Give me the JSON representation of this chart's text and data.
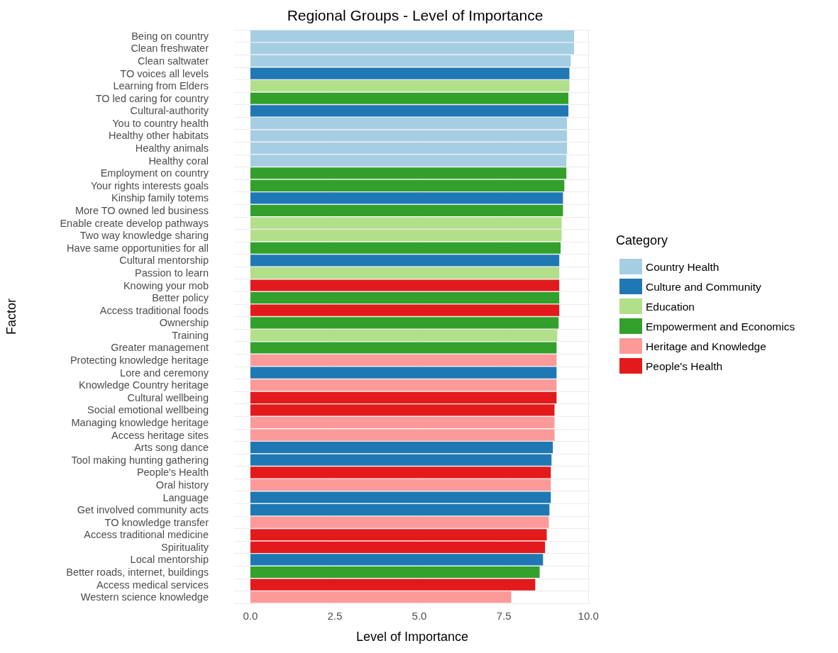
{
  "chart_data": {
    "type": "bar",
    "orientation": "horizontal",
    "title": "Regional Groups - Level of Importance",
    "xlabel": "Level of Importance",
    "ylabel": "Factor",
    "legend_title": "Category",
    "legend": "right",
    "grid": true,
    "categories": [
      "Being on country",
      "Clean freshwater",
      "Clean saltwater",
      "TO voices all levels",
      "Learning from Elders",
      "TO led caring for country",
      "Cultural-authority",
      "You to country health",
      "Healthy other habitats",
      "Healthy animals",
      "Healthy coral",
      "Employment on country",
      "Your rights interests goals",
      "Kinship family totems",
      "More TO owned led business",
      "Enable create develop pathways",
      "Two way knowledge sharing",
      "Have same opportunities for all",
      "Cultural mentorship",
      "Passion to learn",
      "Knowing your mob",
      "Better policy",
      "Access traditional foods",
      "Ownership",
      "Training",
      "Greater management",
      "Protecting knowledge heritage",
      "Lore and ceremony",
      "Knowledge Country heritage",
      "Cultural wellbeing",
      "Social emotional wellbeing",
      "Managing knowledge heritage",
      "Access heritage sites",
      "Arts song dance",
      "Tool making hunting gathering",
      "People's Health",
      "Oral history",
      "Language",
      "Get involved community acts",
      "TO knowledge transfer",
      "Access traditional medicine",
      "Spirituality",
      "Local mentorship",
      "Better roads, internet, buildings",
      "Access medical services",
      "Western science knowledge"
    ],
    "series": [
      {
        "name": "Country Health",
        "color": "#a6cee3",
        "values": [
          9.58,
          9.58,
          9.48,
          null,
          null,
          null,
          null,
          9.37,
          9.37,
          9.37,
          9.35,
          null,
          null,
          null,
          null,
          null,
          null,
          null,
          null,
          null,
          null,
          null,
          null,
          null,
          null,
          null,
          null,
          null,
          null,
          null,
          null,
          null,
          null,
          null,
          null,
          null,
          null,
          null,
          null,
          null,
          null,
          null,
          null,
          null,
          null,
          null
        ]
      },
      {
        "name": "Culture and Community",
        "color": "#1f78b4",
        "values": [
          null,
          null,
          null,
          9.44,
          null,
          null,
          9.41,
          null,
          null,
          null,
          null,
          null,
          null,
          9.25,
          null,
          null,
          null,
          null,
          9.14,
          null,
          null,
          null,
          null,
          null,
          null,
          null,
          null,
          9.06,
          null,
          null,
          null,
          null,
          null,
          8.95,
          8.91,
          null,
          null,
          8.89,
          8.85,
          null,
          null,
          null,
          8.66,
          null,
          null,
          null
        ]
      },
      {
        "name": "Education",
        "color": "#b2df8a",
        "values": [
          null,
          null,
          null,
          null,
          9.44,
          null,
          null,
          null,
          null,
          null,
          null,
          null,
          null,
          null,
          null,
          9.21,
          9.21,
          null,
          null,
          9.14,
          null,
          null,
          null,
          null,
          9.08,
          null,
          null,
          null,
          null,
          null,
          null,
          null,
          null,
          null,
          null,
          null,
          null,
          null,
          null,
          null,
          null,
          null,
          null,
          null,
          null,
          null
        ]
      },
      {
        "name": "Empowerment and Economics",
        "color": "#33a02c",
        "values": [
          null,
          null,
          null,
          null,
          null,
          9.41,
          null,
          null,
          null,
          null,
          null,
          9.35,
          9.29,
          null,
          9.25,
          null,
          null,
          9.18,
          null,
          null,
          null,
          9.14,
          null,
          9.12,
          null,
          9.06,
          null,
          null,
          null,
          null,
          null,
          null,
          null,
          null,
          null,
          null,
          null,
          null,
          null,
          null,
          null,
          null,
          null,
          8.56,
          null,
          null
        ]
      },
      {
        "name": "Heritage and Knowledge",
        "color": "#fb9a99",
        "values": [
          null,
          null,
          null,
          null,
          null,
          null,
          null,
          null,
          null,
          null,
          null,
          null,
          null,
          null,
          null,
          null,
          null,
          null,
          null,
          null,
          null,
          null,
          null,
          null,
          null,
          null,
          9.06,
          null,
          9.06,
          null,
          null,
          9.0,
          9.0,
          null,
          null,
          null,
          8.89,
          null,
          null,
          8.83,
          null,
          null,
          null,
          null,
          null,
          7.72
        ]
      },
      {
        "name": "People's Health",
        "color": "#e31a1c",
        "values": [
          null,
          null,
          null,
          null,
          null,
          null,
          null,
          null,
          null,
          null,
          null,
          null,
          null,
          null,
          null,
          null,
          null,
          null,
          null,
          null,
          9.14,
          null,
          9.14,
          null,
          null,
          null,
          null,
          null,
          null,
          9.06,
          9.0,
          null,
          null,
          null,
          null,
          8.89,
          null,
          null,
          null,
          null,
          8.77,
          8.72,
          null,
          null,
          8.43,
          null
        ]
      }
    ],
    "xlim": [
      -0.48,
      10.06
    ],
    "xticks": [
      {
        "value": 0,
        "label": "0.0"
      },
      {
        "value": 2.5,
        "label": "2.5"
      },
      {
        "value": 5,
        "label": "5.0"
      },
      {
        "value": 7.5,
        "label": "7.5"
      },
      {
        "value": 10,
        "label": "10.0"
      }
    ]
  }
}
